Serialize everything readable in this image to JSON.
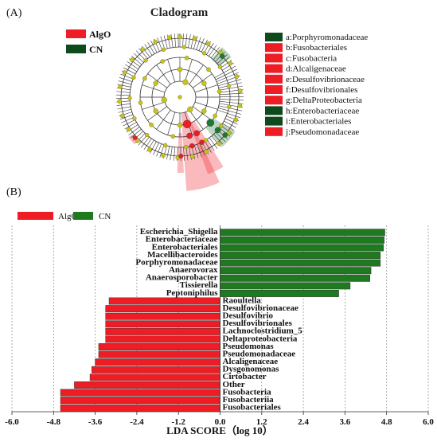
{
  "panel_a": {
    "panel_label": "(A)",
    "title": "Cladogram",
    "legend": [
      {
        "name": "AlgO",
        "color": "#ee1c24"
      },
      {
        "name": "CN",
        "color": "#0f4a1c"
      }
    ],
    "taxa": [
      {
        "key": "a",
        "label": "a:Porphyromonadaceae",
        "group": "CN"
      },
      {
        "key": "b",
        "label": "b:Fusobacteriales",
        "group": "AlgO"
      },
      {
        "key": "c",
        "label": "c:Fusobacteria",
        "group": "AlgO"
      },
      {
        "key": "d",
        "label": "d:Alcaligenaceae",
        "group": "AlgO"
      },
      {
        "key": "e",
        "label": "e:Desulfovibrionaceae",
        "group": "AlgO"
      },
      {
        "key": "f",
        "label": "f:Desulfovibrionales",
        "group": "AlgO"
      },
      {
        "key": "g",
        "label": "g:DeltaProteobacteria",
        "group": "AlgO"
      },
      {
        "key": "h",
        "label": "h:Enterobacteriaceae",
        "group": "CN"
      },
      {
        "key": "i",
        "label": "i:Enterobacteriales",
        "group": "CN"
      },
      {
        "key": "j",
        "label": "j:Pseudomonadaceae",
        "group": "AlgO"
      }
    ],
    "node_colors": {
      "neutral": "#c9c21c",
      "tree": "#333333",
      "algo": "#ee1c24",
      "cn": "#1e7a32"
    }
  },
  "panel_b": {
    "panel_label": "(B)",
    "legend": [
      {
        "name": "AlgO",
        "color": "#ee1c24"
      },
      {
        "name": "CN",
        "color": "#1e7a1e"
      }
    ]
  },
  "chart_data": {
    "type": "bar",
    "orientation": "horizontal",
    "xlabel": "LDA SCORE（log 10）",
    "xlim": [
      -6.0,
      6.0
    ],
    "xticks": [
      -6.0,
      -4.8,
      -3.6,
      -2.4,
      -1.2,
      0.0,
      1.2,
      2.4,
      3.6,
      4.8,
      6.0
    ],
    "xtick_labels": [
      "-6.0",
      "-4.8",
      "-3.6",
      "-2.4",
      "-1.2",
      "0.0",
      "1.2",
      "2.4",
      "3.6",
      "4.8",
      "6.0"
    ],
    "grid": "vertical dashed",
    "colors": {
      "AlgO": "#ee1c24",
      "CN": "#1e7a1e"
    },
    "series": [
      {
        "name": "CN",
        "values": [
          {
            "label": "Escherichia_Shigella",
            "value": 4.75
          },
          {
            "label": "Enterobacteriaceae",
            "value": 4.73
          },
          {
            "label": "Enterobacteriales",
            "value": 4.71
          },
          {
            "label": "Macellibacteroides",
            "value": 4.62
          },
          {
            "label": "Porphyromonadaceae",
            "value": 4.62
          },
          {
            "label": "Anaerovorax",
            "value": 4.35
          },
          {
            "label": "Anaerosporobacter",
            "value": 4.32
          },
          {
            "label": "Tissierella",
            "value": 3.75
          },
          {
            "label": "Peptoniphilus",
            "value": 3.42
          }
        ]
      },
      {
        "name": "AlgO",
        "values": [
          {
            "label": "Raoultella",
            "value": -3.2
          },
          {
            "label": "Desulfovibrionaceae",
            "value": -3.3
          },
          {
            "label": "Desulfovibrio",
            "value": -3.3
          },
          {
            "label": "Desulfovibrionales",
            "value": -3.3
          },
          {
            "label": "Lachnoclostridium_5",
            "value": -3.3
          },
          {
            "label": "Deltaproteobacteria",
            "value": -3.3
          },
          {
            "label": "Pseudomonas",
            "value": -3.5
          },
          {
            "label": "Pseudomonadaceae",
            "value": -3.5
          },
          {
            "label": "Alcaligenaceae",
            "value": -3.6
          },
          {
            "label": "Dysgonomonas",
            "value": -3.7
          },
          {
            "label": "Cirtobacter",
            "value": -3.75
          },
          {
            "label": "Other",
            "value": -4.2
          },
          {
            "label": "Fusobacteria",
            "value": -4.6
          },
          {
            "label": "Fusobacteriia",
            "value": -4.6
          },
          {
            "label": "Fusobacteriales",
            "value": -4.6
          }
        ]
      }
    ]
  }
}
